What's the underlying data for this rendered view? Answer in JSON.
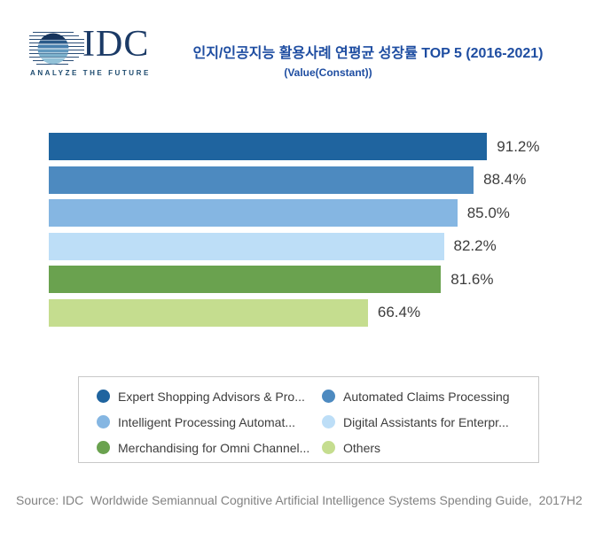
{
  "logo": {
    "text": "IDC",
    "tagline": "ANALYZE THE FUTURE"
  },
  "header": {
    "title": "인지/인공지능 활용사례 연평균 성장률 TOP 5 (2016-2021)",
    "subtitle": "(Value(Constant))",
    "title_color": "#1e4da1"
  },
  "chart_data": {
    "type": "bar",
    "orientation": "horizontal",
    "title": "인지/인공지능 활용사례 연평균 성장률 TOP 5 (2016-2021)",
    "subtitle": "(Value(Constant))",
    "value_unit": "%",
    "xlim": [
      0,
      100
    ],
    "grid": false,
    "axes_visible": false,
    "legend_position": "bottom-box",
    "series": [
      {
        "name": "Expert Shopping Advisors & Pro...",
        "value": 91.2,
        "value_label": "91.2%",
        "color": "#1f649f"
      },
      {
        "name": "Automated Claims Processing",
        "value": 88.4,
        "value_label": "88.4%",
        "color": "#4d8ac0"
      },
      {
        "name": "Intelligent Processing Automat...",
        "value": 85.0,
        "value_label": "85.0%",
        "color": "#85b6e2"
      },
      {
        "name": "Digital Assistants for Enterpr...",
        "value": 82.2,
        "value_label": "82.2%",
        "color": "#bddef7"
      },
      {
        "name": "Merchandising for Omni Channel...",
        "value": 81.6,
        "value_label": "81.6%",
        "color": "#6aa24f"
      },
      {
        "name": "Others",
        "value": 66.4,
        "value_label": "66.4%",
        "color": "#c5dd8f"
      }
    ]
  },
  "footer": {
    "source": "Source: IDC  Worldwide Semiannual Cognitive Artificial Intelligence Systems Spending Guide,  2017H2"
  }
}
